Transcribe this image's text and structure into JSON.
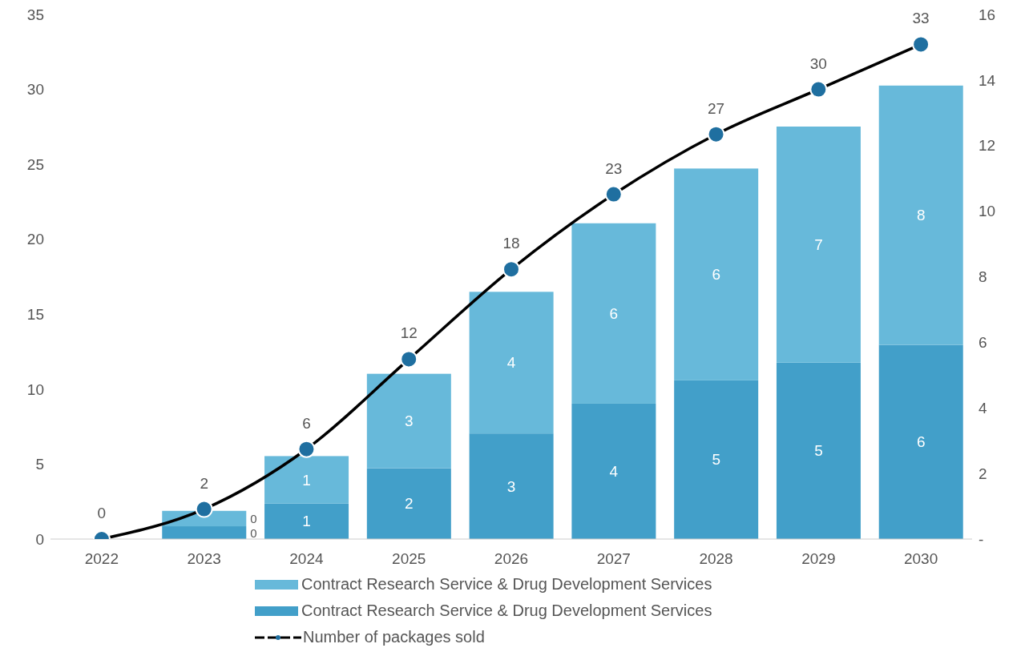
{
  "chart_data": {
    "type": "bar",
    "stacked": true,
    "categories": [
      "2022",
      "2023",
      "2024",
      "2025",
      "2026",
      "2027",
      "2028",
      "2029",
      "2030"
    ],
    "series": [
      {
        "name": "Contract Research Service & Drug Development Services",
        "color": "#429fc9",
        "axis": "y2",
        "values": [
          0,
          0.39,
          1.08,
          2.16,
          3.22,
          4.13,
          4.84,
          5.38,
          5.92
        ],
        "value_labels": [
          null,
          "0",
          "1",
          "2",
          "3",
          "4",
          "5",
          "5",
          "6"
        ]
      },
      {
        "name": "Contract Research Service & Drug Development Services",
        "color": "#67b9da",
        "axis": "y2",
        "values": [
          0,
          0.47,
          1.45,
          2.88,
          4.32,
          5.5,
          6.46,
          7.2,
          7.91
        ],
        "value_labels": [
          null,
          "0",
          "1",
          "3",
          "4",
          "6",
          "6",
          "7",
          "8"
        ]
      },
      {
        "name": "Number of packages sold",
        "type": "line",
        "color": "#000000",
        "colors": [
          "#1f6fa0",
          "#1f6fa0",
          "#1f6fa0",
          "#1f6fa0",
          "#1f6fa0",
          "#1f6fa0",
          "#1f6fa0",
          "#1f6fa0",
          "#1f6fa0"
        ],
        "values": [
          0,
          2,
          6,
          12,
          18,
          23,
          27,
          30,
          33
        ],
        "value_labels": [
          "0",
          "2",
          "6",
          "12",
          "18",
          "23",
          "27",
          "30",
          "33"
        ]
      }
    ],
    "ylim": [
      0,
      35
    ],
    "yticks": [
      0,
      5,
      10,
      15,
      20,
      25,
      30,
      35
    ],
    "y2lim": [
      0,
      16
    ],
    "y2ticks": [
      {
        "value": 0,
        "label": "-"
      },
      2,
      4,
      6,
      8,
      10,
      12,
      14,
      16
    ],
    "grid": false,
    "legend": "bottom",
    "marker": "circle",
    "line_style": "solid"
  }
}
